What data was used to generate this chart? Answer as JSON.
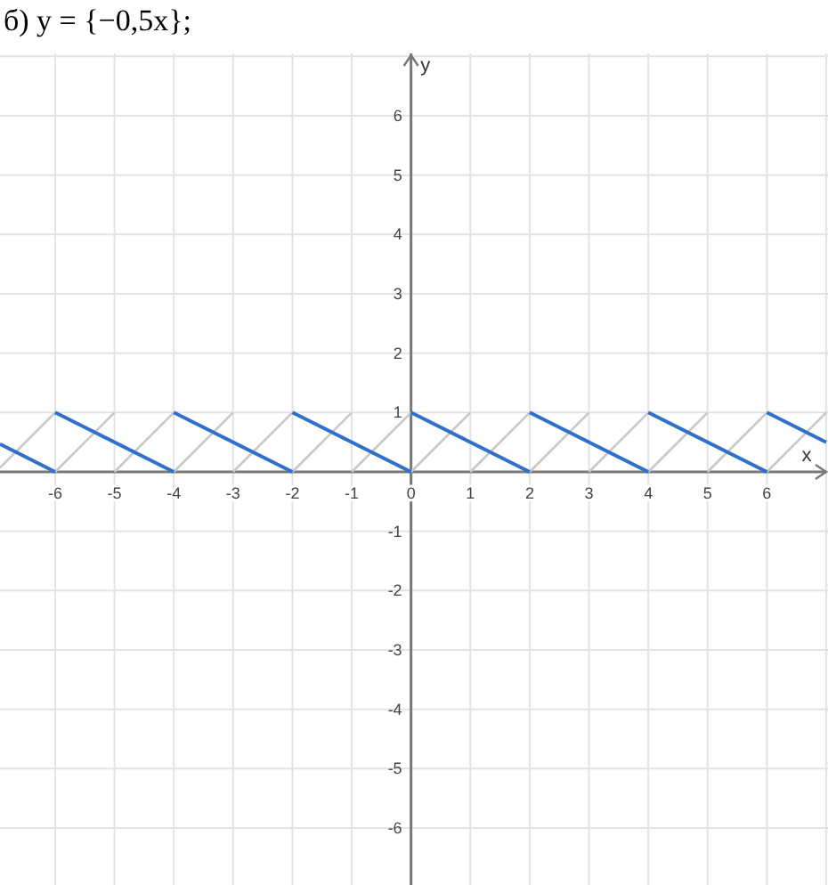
{
  "chart_data": {
    "type": "line",
    "title": "б) y = {−0,5x};",
    "xlabel": "x",
    "ylabel": "y",
    "xlim": [
      -6.93,
      7
    ],
    "ylim": [
      -6.96,
      7.05
    ],
    "xticks": [
      -6,
      -5,
      -4,
      -3,
      -2,
      -1,
      0,
      1,
      2,
      3,
      4,
      5,
      6
    ],
    "yticks": [
      -6,
      -5,
      -4,
      -3,
      -2,
      -1,
      1,
      2,
      3,
      4,
      5,
      6
    ],
    "grid": true,
    "marker": "none",
    "line_style": "solid",
    "series": [
      {
        "color": "#c8c8c8",
        "x": [
          -6.93,
          -6,
          null,
          -6,
          -5,
          null,
          -5,
          -4,
          null,
          -4,
          -3,
          null,
          -3,
          -2,
          null,
          -2,
          -1,
          null,
          -1,
          0,
          null,
          0,
          1,
          null,
          1,
          2,
          null,
          2,
          3,
          null,
          3,
          4,
          null,
          4,
          5,
          null,
          5,
          6,
          null,
          6,
          7
        ],
        "values": [
          0.07,
          1,
          null,
          0,
          1,
          null,
          0,
          1,
          null,
          0,
          1,
          null,
          0,
          1,
          null,
          0,
          1,
          null,
          0,
          1,
          null,
          0,
          1,
          null,
          0,
          1,
          null,
          0,
          1,
          null,
          0,
          1,
          null,
          0,
          1,
          null,
          0,
          1,
          null,
          0,
          1
        ]
      },
      {
        "color": "#2f6fce",
        "x": [
          -6.93,
          -6,
          null,
          -6,
          -4,
          null,
          -4,
          -2,
          null,
          -2,
          0,
          null,
          0,
          2,
          null,
          2,
          4,
          null,
          4,
          6,
          null,
          6,
          7
        ],
        "values": [
          0.47,
          0,
          null,
          1,
          0,
          null,
          1,
          0,
          null,
          1,
          0,
          null,
          1,
          0,
          null,
          1,
          0,
          null,
          1,
          0,
          null,
          1,
          0.5
        ]
      }
    ]
  }
}
